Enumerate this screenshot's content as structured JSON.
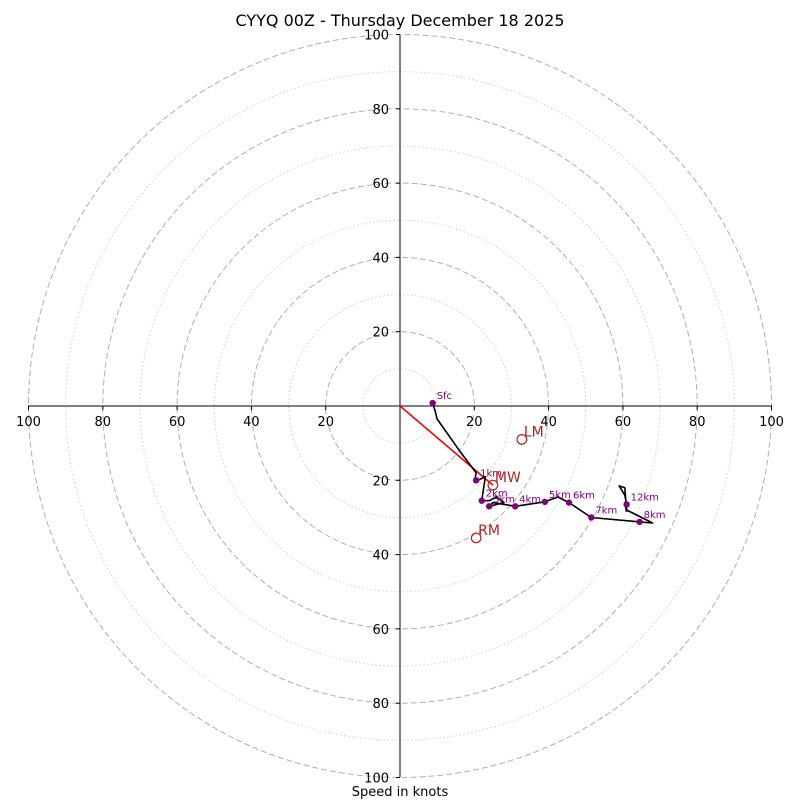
{
  "chart_data": {
    "type": "hodograph",
    "title": "CYYQ 00Z - Thursday December 18 2025",
    "xlabel": "Speed in knots",
    "xlim": [
      -100,
      100
    ],
    "ylim": [
      -100,
      100
    ],
    "major_rings": [
      20,
      40,
      60,
      80,
      100
    ],
    "minor_rings": [
      10,
      30,
      50,
      70,
      90
    ],
    "x_tick_labels": [
      "100",
      "80",
      "60",
      "40",
      "20",
      "20",
      "40",
      "60",
      "80",
      "100"
    ],
    "x_tick_values": [
      -100,
      -80,
      -60,
      -40,
      -20,
      20,
      40,
      60,
      80,
      100
    ],
    "y_tick_labels_top": [
      "20",
      "40",
      "60",
      "80",
      "100"
    ],
    "y_tick_values_top": [
      20,
      40,
      60,
      80,
      100
    ],
    "y_tick_labels_bottom": [
      "20",
      "40",
      "60",
      "80",
      "100"
    ],
    "y_tick_values_bottom": [
      -20,
      -40,
      -60,
      -80,
      -100
    ],
    "grid": true,
    "colors": {
      "hodograph": "#000000",
      "points": "#800080",
      "mean_wind_vector": "#ff0000",
      "storm_motion": "#b22222",
      "major_ring": "#b0b0b0",
      "minor_ring": "#cfcfcf"
    },
    "hodograph_line": [
      {
        "u": 8.8,
        "v": 0.8
      },
      {
        "u": 9.5,
        "v": -1.5
      },
      {
        "u": 10.0,
        "v": -3.5
      },
      {
        "u": 16.0,
        "v": -12.0
      },
      {
        "u": 20.5,
        "v": -18.0
      },
      {
        "u": 20.0,
        "v": -20.5
      },
      {
        "u": 23.0,
        "v": -19.0
      },
      {
        "u": 22.0,
        "v": -25.5
      },
      {
        "u": 24.0,
        "v": -25.5
      },
      {
        "u": 26.0,
        "v": -24.5
      },
      {
        "u": 28.0,
        "v": -26.0
      },
      {
        "u": 24.0,
        "v": -27.0
      },
      {
        "u": 25.0,
        "v": -26.0
      },
      {
        "u": 28.0,
        "v": -26.5
      },
      {
        "u": 31.0,
        "v": -27.0
      },
      {
        "u": 39.0,
        "v": -25.8
      },
      {
        "u": 42.5,
        "v": -24.5
      },
      {
        "u": 45.5,
        "v": -26.0
      },
      {
        "u": 51.5,
        "v": -30.0
      },
      {
        "u": 64.5,
        "v": -31.2
      },
      {
        "u": 68.0,
        "v": -31.5
      },
      {
        "u": 61.0,
        "v": -28.0
      },
      {
        "u": 60.5,
        "v": -22.0
      },
      {
        "u": 59.0,
        "v": -21.5
      },
      {
        "u": 60.5,
        "v": -24.0
      },
      {
        "u": 61.0,
        "v": -26.5
      },
      {
        "u": 60.5,
        "v": -26.0
      },
      {
        "u": 61.0,
        "v": -28.5
      }
    ],
    "points": [
      {
        "label": "Sfc",
        "u": 8.8,
        "v": 0.8
      },
      {
        "label": "1km",
        "u": 20.5,
        "v": -20.0
      },
      {
        "label": "2km",
        "u": 22.0,
        "v": -25.5
      },
      {
        "label": "3km",
        "u": 24.0,
        "v": -27.0
      },
      {
        "label": "4km",
        "u": 31.0,
        "v": -27.0
      },
      {
        "label": "5km",
        "u": 39.0,
        "v": -25.8
      },
      {
        "label": "6km",
        "u": 45.5,
        "v": -26.0
      },
      {
        "label": "7km",
        "u": 51.5,
        "v": -30.0
      },
      {
        "label": "8km",
        "u": 64.5,
        "v": -31.2
      },
      {
        "label": "12km",
        "u": 61.0,
        "v": -26.5
      }
    ],
    "storm_motions": [
      {
        "label": "LM",
        "u": 32.8,
        "v": -9.0
      },
      {
        "label": "MW",
        "u": 25.0,
        "v": -21.3
      },
      {
        "label": "RM",
        "u": 20.5,
        "v": -35.5
      }
    ],
    "mean_wind_vector": {
      "from": {
        "u": 0,
        "v": 0
      },
      "to": {
        "u": 25.0,
        "v": -21.3
      }
    }
  }
}
